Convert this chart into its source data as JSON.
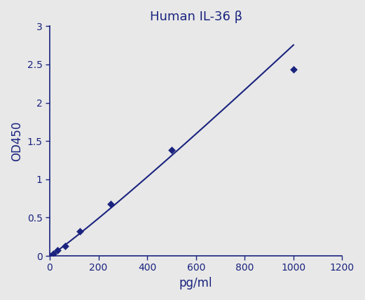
{
  "x_points": [
    0,
    15.6,
    31.3,
    62.5,
    125,
    250,
    500,
    1000
  ],
  "y_points": [
    0.0,
    0.03,
    0.07,
    0.13,
    0.32,
    0.68,
    1.38,
    2.44
  ],
  "title": "Human IL-36 β",
  "xlabel": "pg/ml",
  "ylabel": "OD450",
  "xlim": [
    0,
    1200
  ],
  "ylim": [
    0,
    3
  ],
  "xticks": [
    0,
    200,
    400,
    600,
    800,
    1000,
    1200
  ],
  "yticks": [
    0,
    0.5,
    1.0,
    1.5,
    2.0,
    2.5,
    3.0
  ],
  "ytick_labels": [
    "0",
    "0.5",
    "1",
    "1.5",
    "2",
    "2.5",
    "3"
  ],
  "line_color": "#1a237e",
  "marker_color": "#1a237e",
  "bg_color": "#e8e8e8",
  "title_fontsize": 13,
  "label_fontsize": 12,
  "tick_fontsize": 10
}
